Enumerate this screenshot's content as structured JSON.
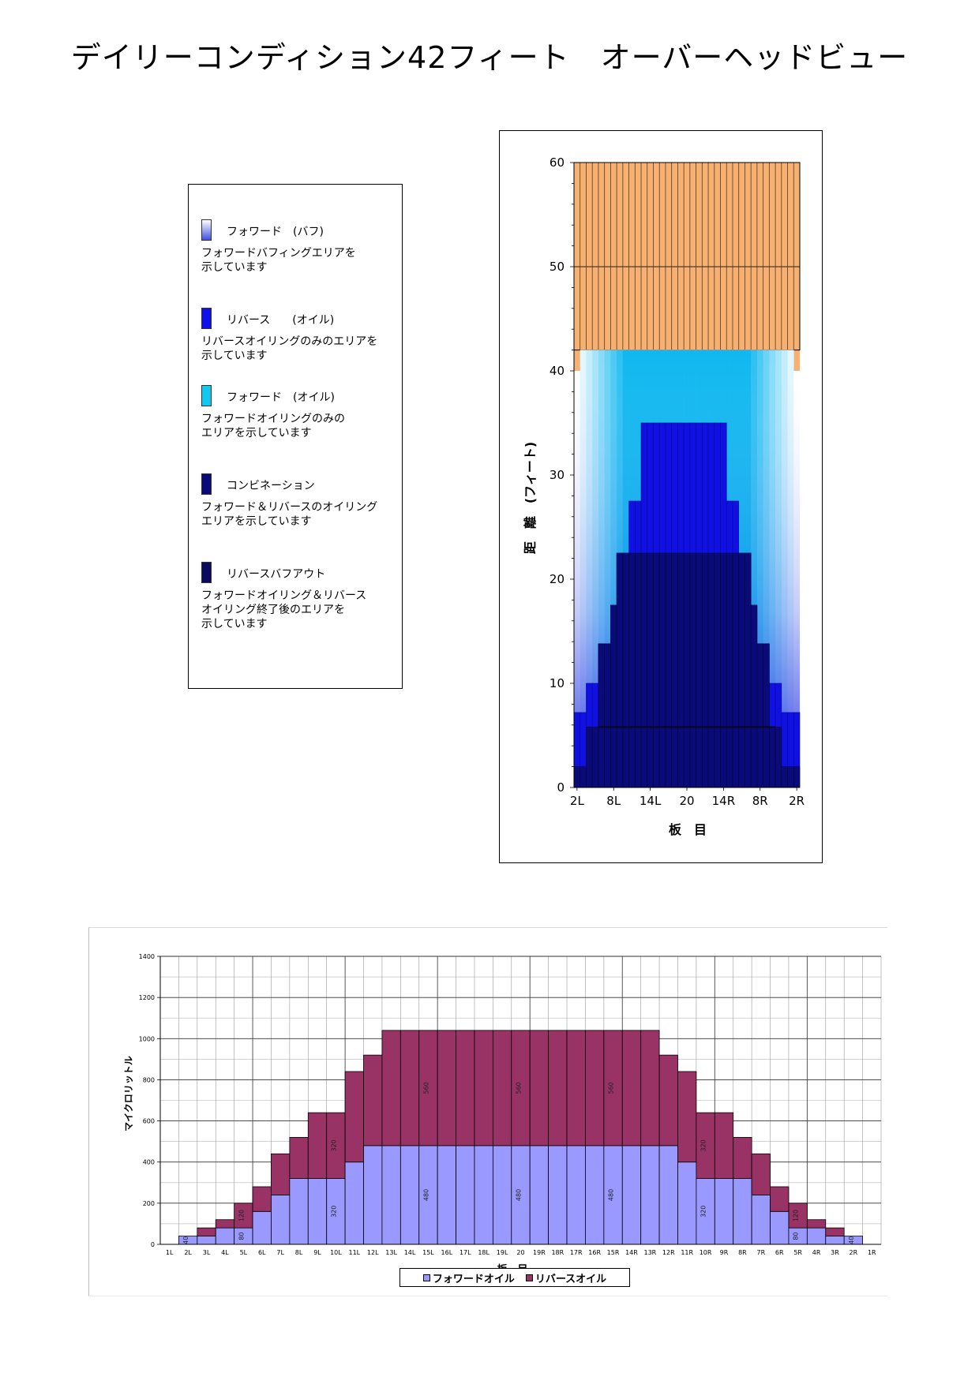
{
  "title": "デイリーコンディション42フィート　オーバーヘッドビュー",
  "legend": {
    "items": [
      {
        "label": "フォワード　(バフ)",
        "desc": "フォワードバフィングエリアを\n示しています",
        "color": "#4050e0",
        "style": "gradient"
      },
      {
        "label": "リバース　　(オイル)",
        "desc": "リバースオイリングのみのエリアを\n示しています",
        "color": "#1010e8",
        "style": "solid"
      },
      {
        "label": "フォワード　(オイル)",
        "desc": "フォワードオイリングのみの\nエリアを示しています",
        "color": "#10c8f0",
        "style": "solid"
      },
      {
        "label": "コンビネーション",
        "desc": "フォワード＆リバースのオイリング\nエリアを示しています",
        "color": "#0a0a78",
        "style": "solid"
      },
      {
        "label": "リバースバフアウト",
        "desc": "フォワードオイリング＆リバース\nオイリング終了後のエリアを\n示しています",
        "color": "#0a0a60",
        "style": "solid"
      }
    ]
  },
  "chart_data": [
    {
      "type": "heatmap",
      "ylabel": "距　離　(フィート)",
      "xlabel": "板　目",
      "yticks": [
        0,
        10,
        20,
        30,
        40,
        50,
        60
      ],
      "ylim": [
        0,
        60
      ],
      "xticks": [
        "2L",
        "8L",
        "14L",
        "20",
        "14R",
        "8R",
        "2R"
      ],
      "boards": [
        "2L",
        "3L",
        "4L",
        "5L",
        "6L",
        "7L",
        "8L",
        "9L",
        "10L",
        "11L",
        "12L",
        "13L",
        "14L",
        "15L",
        "16L",
        "17L",
        "18L",
        "19L",
        "20",
        "19R",
        "18R",
        "17R",
        "16R",
        "15R",
        "14R",
        "13R",
        "12R",
        "11R",
        "10R",
        "9R",
        "8R",
        "7R",
        "6R",
        "5R",
        "4R",
        "3R",
        "2R"
      ],
      "oil_length_ft": [
        42,
        42,
        42,
        42,
        42,
        42,
        42,
        42,
        42,
        42,
        42,
        42,
        42,
        42,
        42,
        42,
        42,
        42,
        42,
        42,
        42,
        42,
        42,
        42,
        42,
        42,
        42,
        42,
        42,
        42,
        42,
        42,
        42,
        42,
        42,
        42,
        42
      ],
      "lane_length_ft": 60,
      "edge_boards_oil_ft": 40,
      "reverse_oil_ft": [
        7.2,
        7.2,
        10,
        10,
        13.8,
        13.8,
        17.5,
        22.5,
        22.5,
        27.5,
        27.5,
        35,
        35,
        35,
        35,
        35,
        35,
        35,
        35,
        35,
        35,
        35,
        35,
        35,
        35,
        27.5,
        27.5,
        22.5,
        22.5,
        17.5,
        13.8,
        13.8,
        10,
        10,
        7.2,
        7.2,
        7.2
      ],
      "combination_ft": [
        2,
        2,
        5.8,
        5.8,
        13.8,
        13.8,
        17.5,
        22.5,
        22.5,
        22.5,
        22.5,
        22.5,
        22.5,
        22.5,
        22.5,
        22.5,
        22.5,
        22.5,
        22.5,
        22.5,
        22.5,
        22.5,
        22.5,
        22.5,
        22.5,
        22.5,
        22.5,
        22.5,
        22.5,
        17.5,
        13.8,
        13.8,
        5.8,
        5.8,
        2,
        2,
        2
      ],
      "buff_out_line_ft": 5.8,
      "colors": {
        "dry": "#f6b071",
        "dry_stripe": "#5a3a1a",
        "forward_oil": "#10b8f0",
        "reverse_oil": "#1010e0",
        "combination": "#0a0a78",
        "buff": "#ffffff"
      }
    },
    {
      "type": "bar",
      "stacked": true,
      "ylabel": "マイクロリットル",
      "xlabel": "板　目",
      "ylim": [
        0,
        1400
      ],
      "yticks": [
        0,
        200,
        400,
        600,
        800,
        1000,
        1200,
        1400
      ],
      "categories": [
        "1L",
        "2L",
        "3L",
        "4L",
        "5L",
        "6L",
        "7L",
        "8L",
        "9L",
        "10L",
        "11L",
        "12L",
        "13L",
        "14L",
        "15L",
        "16L",
        "17L",
        "18L",
        "19L",
        "20",
        "19R",
        "18R",
        "17R",
        "16R",
        "15R",
        "14R",
        "13R",
        "12R",
        "11R",
        "10R",
        "9R",
        "8R",
        "7R",
        "6R",
        "5R",
        "4R",
        "3R",
        "2R",
        "1R"
      ],
      "series": [
        {
          "name": "フォワードオイル",
          "color": "#9999ff",
          "values": [
            0,
            40,
            40,
            80,
            80,
            160,
            240,
            320,
            320,
            320,
            400,
            480,
            480,
            480,
            480,
            480,
            480,
            480,
            480,
            480,
            480,
            480,
            480,
            480,
            480,
            480,
            480,
            480,
            400,
            320,
            320,
            320,
            240,
            160,
            80,
            80,
            40,
            40,
            0
          ]
        },
        {
          "name": "リバースオイル",
          "color": "#993366",
          "values": [
            0,
            0,
            40,
            40,
            120,
            120,
            200,
            200,
            320,
            320,
            440,
            440,
            560,
            560,
            560,
            560,
            560,
            560,
            560,
            560,
            560,
            560,
            560,
            560,
            560,
            560,
            560,
            440,
            440,
            320,
            320,
            200,
            200,
            120,
            120,
            40,
            40,
            0,
            0
          ]
        }
      ],
      "data_labels": [
        {
          "index": 1,
          "series": 0,
          "text": "40"
        },
        {
          "index": 4,
          "series": 0,
          "text": "80"
        },
        {
          "index": 4,
          "series": 1,
          "text": "120"
        },
        {
          "index": 9,
          "series": 0,
          "text": "320"
        },
        {
          "index": 9,
          "series": 1,
          "text": "320"
        },
        {
          "index": 14,
          "series": 0,
          "text": "480"
        },
        {
          "index": 14,
          "series": 1,
          "text": "560"
        },
        {
          "index": 19,
          "series": 0,
          "text": "480"
        },
        {
          "index": 19,
          "series": 1,
          "text": "560"
        },
        {
          "index": 24,
          "series": 0,
          "text": "480"
        },
        {
          "index": 24,
          "series": 1,
          "text": "560"
        },
        {
          "index": 29,
          "series": 0,
          "text": "320"
        },
        {
          "index": 29,
          "series": 1,
          "text": "320"
        },
        {
          "index": 34,
          "series": 0,
          "text": "80"
        },
        {
          "index": 34,
          "series": 1,
          "text": "120"
        },
        {
          "index": 37,
          "series": 0,
          "text": "40"
        }
      ]
    }
  ]
}
